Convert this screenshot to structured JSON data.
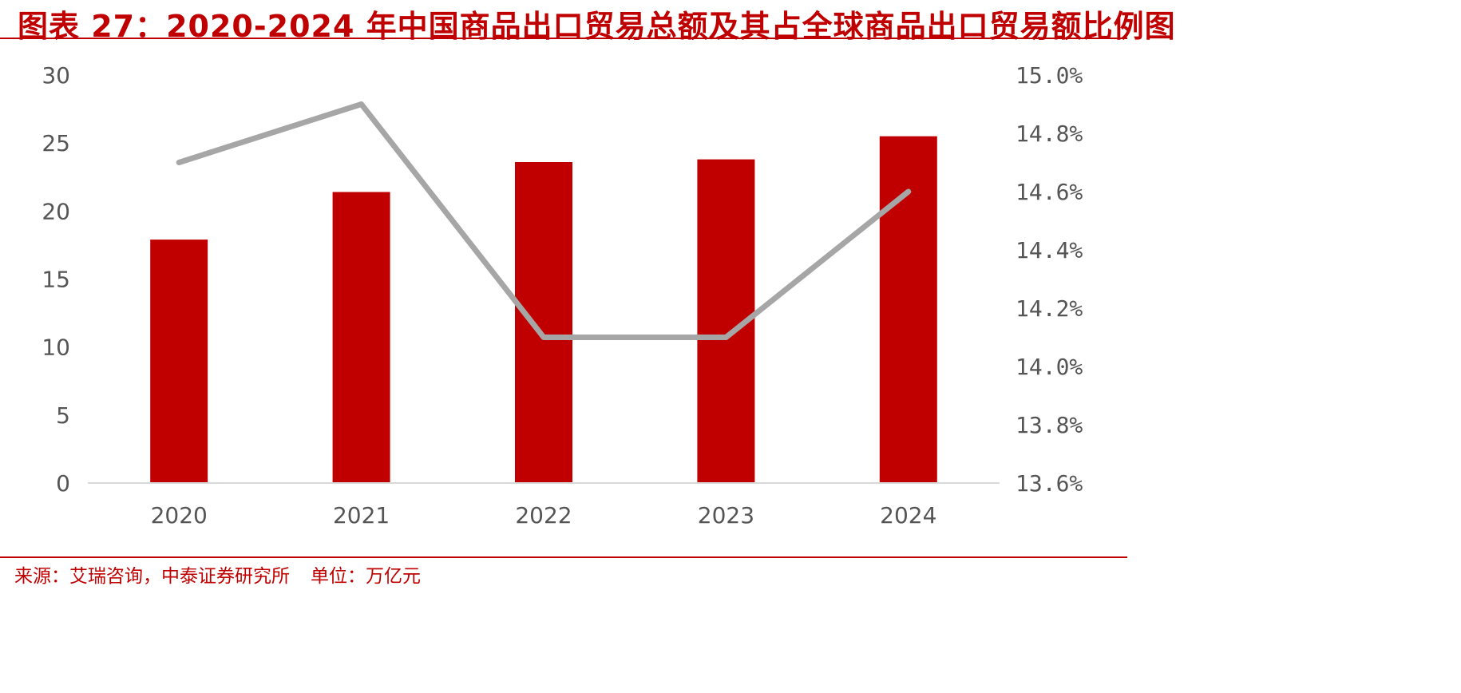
{
  "title": "图表 27：2020-2024 年中国商品出口贸易总额及其占全球商品出口贸易额比例图",
  "source": "来源：艾瑞咨询，中泰证券研究所",
  "unit": "单位：万亿元",
  "colors": {
    "bar": "#C00000",
    "line": "#A6A6A6",
    "axis": "#D9D9D9",
    "accent": "#C00000"
  },
  "chart_data": {
    "type": "bar",
    "categories": [
      "2020",
      "2021",
      "2022",
      "2023",
      "2024"
    ],
    "series": [
      {
        "type": "bar",
        "axis": "left",
        "values": [
          17.9,
          21.4,
          23.6,
          23.8,
          25.5
        ]
      },
      {
        "type": "line",
        "axis": "right",
        "values": [
          14.7,
          14.9,
          14.1,
          14.1,
          14.6
        ]
      }
    ],
    "ylim": [
      0,
      30
    ],
    "yticks": [
      "0",
      "5",
      "10",
      "15",
      "20",
      "25",
      "30"
    ],
    "y2lim": [
      13.6,
      15.0
    ],
    "y2ticks": [
      "13.6%",
      "13.8%",
      "14.0%",
      "14.2%",
      "14.4%",
      "14.6%",
      "14.8%",
      "15.0%"
    ],
    "grid": false,
    "legend": "none"
  }
}
